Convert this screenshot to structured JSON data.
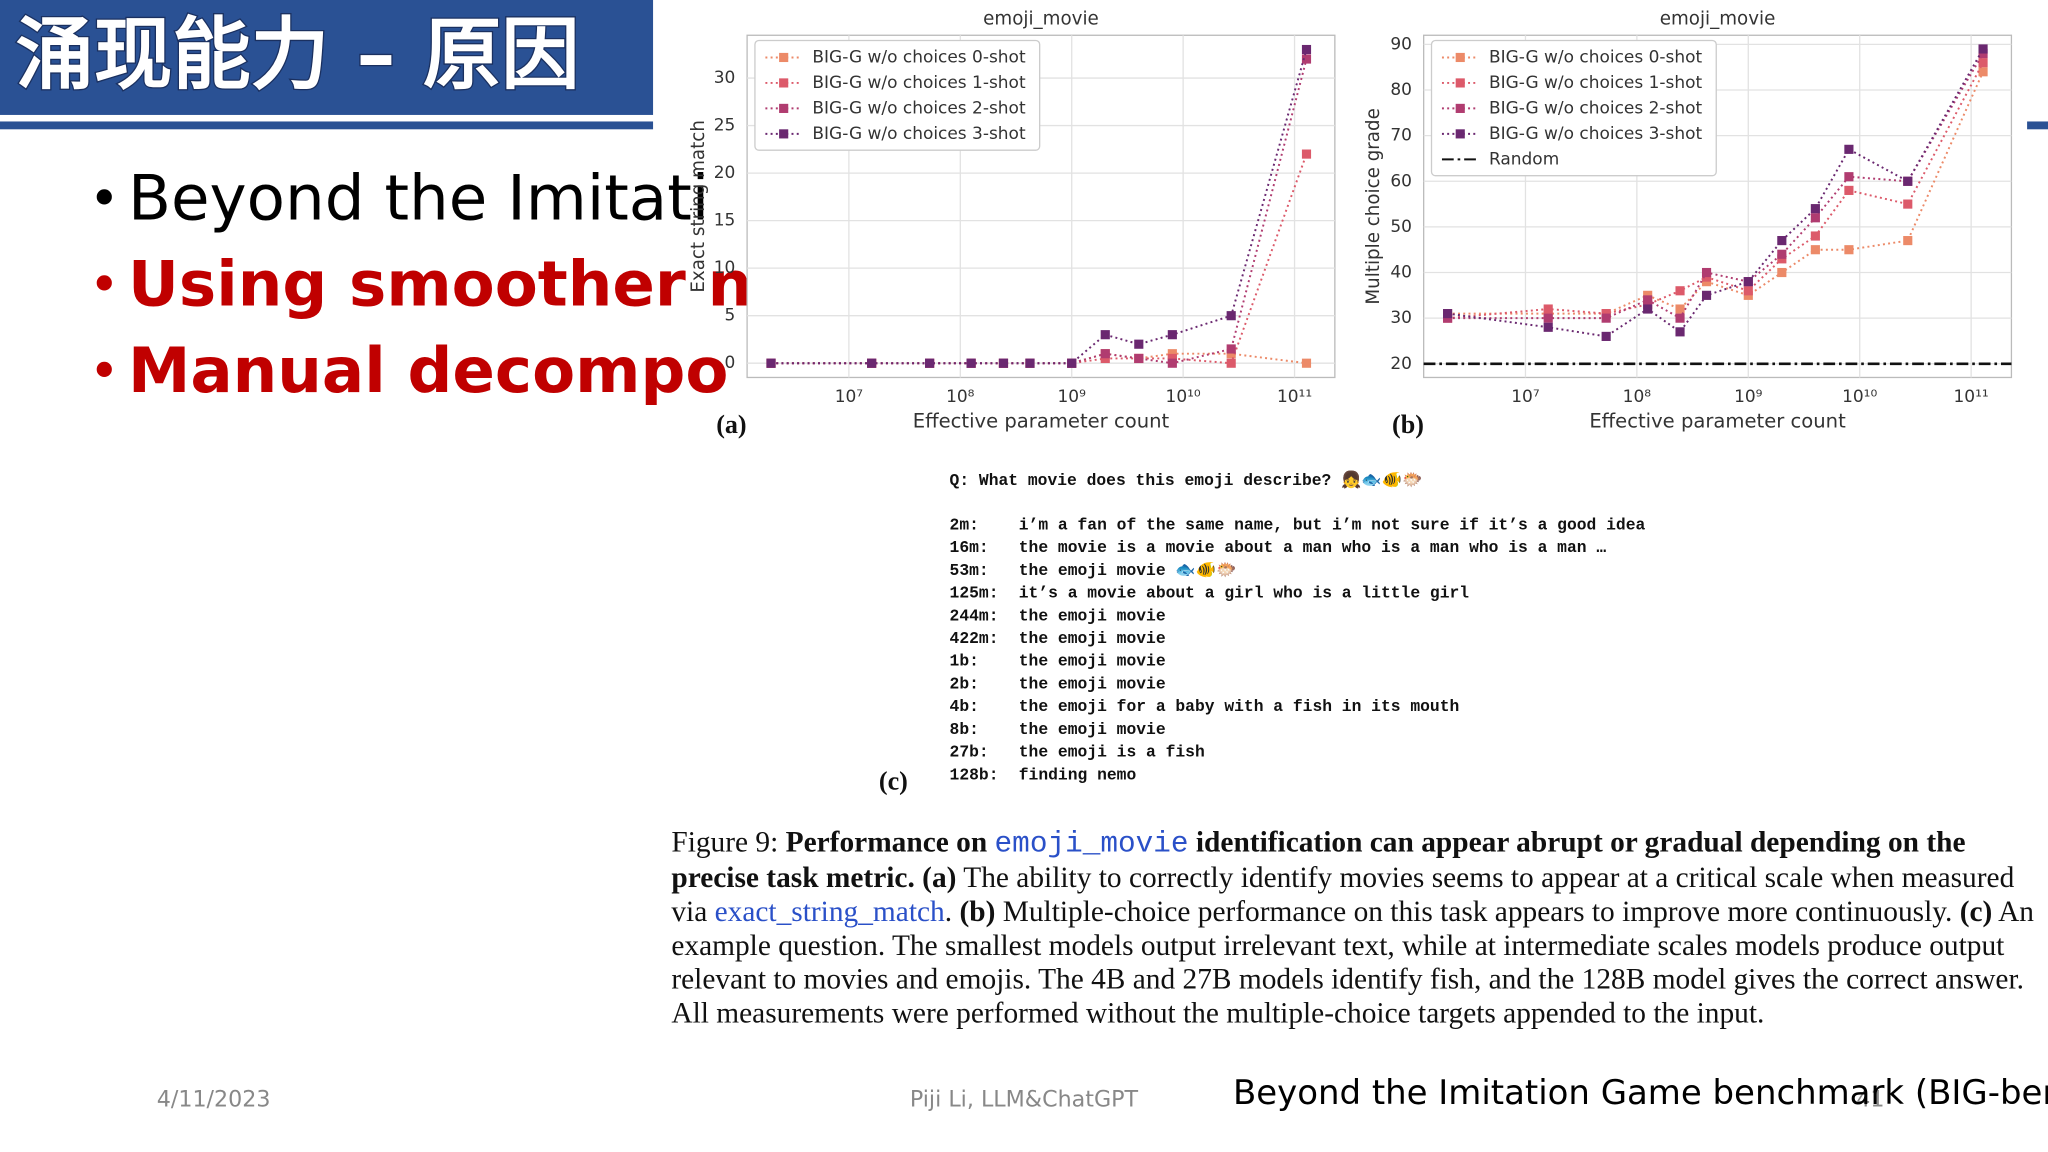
{
  "header": {
    "title": "涌现能力 – 原因"
  },
  "bullets": [
    {
      "text": "Beyond the Imitati",
      "color": "#000000"
    },
    {
      "text": "Using smoother n",
      "color": "#c00000"
    },
    {
      "text": "Manual decompo",
      "color": "#c00000"
    }
  ],
  "chart_data": [
    {
      "type": "line",
      "panel": "(a)",
      "title": "emoji_movie",
      "x_label": "Effective parameter count",
      "y_label": "Exact string match",
      "x_log": true,
      "grid": true,
      "legend": "upper left",
      "x": [
        2000000,
        16000000,
        53000000,
        125000000,
        244000000,
        422000000,
        1000000000,
        2000000000,
        4000000000,
        8000000000,
        27000000000,
        128000000000
      ],
      "xlim": [
        1220000,
        230000000000
      ],
      "xticks": [
        {
          "value": 10000000,
          "label": "10⁷"
        },
        {
          "value": 100000000,
          "label": "10⁸"
        },
        {
          "value": 1000000000,
          "label": "10⁹"
        },
        {
          "value": 10000000000,
          "label": "10¹⁰"
        },
        {
          "value": 100000000000,
          "label": "10¹¹"
        }
      ],
      "ylim": [
        -1.5,
        34.5
      ],
      "yticks": [
        0,
        5,
        10,
        15,
        20,
        25,
        30
      ],
      "series": [
        {
          "name": "BIG-G w/o choices 0-shot",
          "color": "#ec8a68",
          "values": [
            0,
            0,
            0,
            0,
            0,
            0,
            0,
            1,
            0.5,
            1,
            1,
            0
          ]
        },
        {
          "name": "BIG-G w/o choices 1-shot",
          "color": "#dc5a6a",
          "values": [
            0,
            0,
            0,
            0,
            0,
            0,
            0,
            0.5,
            0.5,
            0.5,
            0,
            22
          ]
        },
        {
          "name": "BIG-G w/o choices 2-shot",
          "color": "#b03c70",
          "values": [
            0,
            0,
            0,
            0,
            0,
            0,
            0,
            1,
            0.5,
            0,
            1.5,
            32
          ]
        },
        {
          "name": "BIG-G w/o choices 3-shot",
          "color": "#6a2870",
          "values": [
            0,
            0,
            0,
            0,
            0,
            0,
            0,
            3,
            2,
            3,
            5,
            33
          ]
        }
      ]
    },
    {
      "type": "line",
      "panel": "(b)",
      "title": "emoji_movie",
      "x_label": "Effective parameter count",
      "y_label": "Multiple choice grade",
      "x_log": true,
      "grid": true,
      "legend": "upper left",
      "x": [
        2000000,
        16000000,
        53000000,
        125000000,
        244000000,
        422000000,
        1000000000,
        2000000000,
        4000000000,
        8000000000,
        27000000000,
        128000000000
      ],
      "xlim": [
        1220000,
        230000000000
      ],
      "xticks": [
        {
          "value": 10000000,
          "label": "10⁷"
        },
        {
          "value": 100000000,
          "label": "10⁸"
        },
        {
          "value": 1000000000,
          "label": "10⁹"
        },
        {
          "value": 10000000000,
          "label": "10¹⁰"
        },
        {
          "value": 100000000000,
          "label": "10¹¹"
        }
      ],
      "ylim": [
        17,
        92
      ],
      "yticks": [
        20,
        30,
        40,
        50,
        60,
        70,
        80,
        90
      ],
      "series": [
        {
          "name": "BIG-G w/o choices 0-shot",
          "color": "#ec8a68",
          "values": [
            31,
            31,
            31,
            35,
            32,
            38,
            35,
            40,
            45,
            45,
            47,
            84
          ]
        },
        {
          "name": "BIG-G w/o choices 1-shot",
          "color": "#dc5a6a",
          "values": [
            30,
            32,
            31,
            33,
            36,
            39,
            36,
            43,
            48,
            58,
            55,
            86
          ]
        },
        {
          "name": "BIG-G w/o choices 2-shot",
          "color": "#b03c70",
          "values": [
            30,
            30,
            30,
            34,
            30,
            40,
            38,
            44,
            52,
            61,
            60,
            88
          ]
        },
        {
          "name": "BIG-G w/o choices 3-shot",
          "color": "#6a2870",
          "values": [
            31,
            28,
            26,
            32,
            27,
            35,
            38,
            47,
            54,
            67,
            60,
            89
          ]
        }
      ],
      "reference_line": {
        "name": "Random",
        "value": 20,
        "color": "#111111"
      }
    }
  ],
  "example": {
    "panel": "(c)",
    "question": "Q: What movie does this emoji describe? 👧🐟🐠🐡",
    "rows": [
      {
        "model": "2m:",
        "output": "i’m a fan of the same name, but i’m not sure if it’s a good idea"
      },
      {
        "model": "16m:",
        "output": "the movie is a movie about a man who is a man who is a man …"
      },
      {
        "model": "53m:",
        "output": "the emoji movie 🐟🐠🐡"
      },
      {
        "model": "125m:",
        "output": "it’s a movie about a girl who is a little girl"
      },
      {
        "model": "244m:",
        "output": "the emoji movie"
      },
      {
        "model": "422m:",
        "output": "the emoji movie"
      },
      {
        "model": "1b:",
        "output": "the emoji movie"
      },
      {
        "model": "2b:",
        "output": "the emoji movie"
      },
      {
        "model": "4b:",
        "output": "the emoji for a baby with a fish in its mouth"
      },
      {
        "model": "8b:",
        "output": "the emoji movie"
      },
      {
        "model": "27b:",
        "output": "the emoji is a fish"
      },
      {
        "model": "128b:",
        "output": "finding nemo"
      }
    ]
  },
  "caption": [
    {
      "text": "Figure 9: ",
      "style": "normal"
    },
    {
      "text": "Performance on ",
      "style": "bold"
    },
    {
      "text": "emoji_movie",
      "style": "code"
    },
    {
      "text": " identification can appear abrupt or gradual depending on the precise task metric.",
      "style": "bold"
    },
    {
      "text": " ",
      "style": "normal"
    },
    {
      "text": "(a)",
      "style": "bold"
    },
    {
      "text": " The ability to correctly identify movies seems to appear at a critical scale when measured via ",
      "style": "normal"
    },
    {
      "text": "exact_string_match",
      "style": "link"
    },
    {
      "text": ". ",
      "style": "normal"
    },
    {
      "text": "(b)",
      "style": "bold"
    },
    {
      "text": " Multiple-choice performance on this task appears to improve more continuously. ",
      "style": "normal"
    },
    {
      "text": "(c)",
      "style": "bold"
    },
    {
      "text": " An example question. The smallest models output irrelevant text, while at intermediate scales models produce output relevant to movies and emojis. The 4B and 27B models identify fish, and the 128B model gives the correct answer. All measurements were performed without the multiple-choice targets appended to the input.",
      "style": "normal"
    }
  ],
  "footer": {
    "date": "4/11/2023",
    "author": "Piji Li, LLM&ChatGPT",
    "source": "Beyond the Imitation Game benchmark (BIG-bench)",
    "page": "41"
  }
}
